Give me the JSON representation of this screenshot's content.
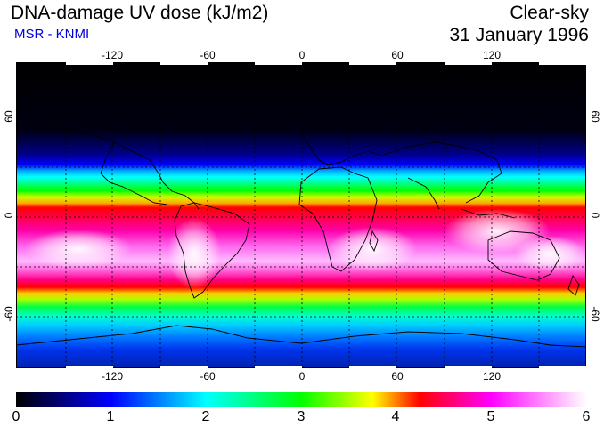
{
  "title": "DNA-damage UV dose (kJ/m2)",
  "subtitle": "MSR - KNMI",
  "condition": "Clear-sky",
  "date": "31 January 1996",
  "lon_ticks": [
    "-120",
    "-60",
    "0",
    "60",
    "120"
  ],
  "lat_ticks_left": [
    "60",
    "0",
    "-60"
  ],
  "lat_ticks_right": [
    "60",
    "0",
    "-60"
  ],
  "colorbar_ticks": [
    "0",
    "1",
    "2",
    "3",
    "4",
    "5",
    "6"
  ],
  "colorbar_colors": [
    "#000000",
    "#0000ff",
    "#00ffff",
    "#00ff00",
    "#ffff00",
    "#ff0000",
    "#ff00ff",
    "#ffffff"
  ],
  "map_colors": {
    "background_dark": "#000000",
    "coast": "#000000",
    "grid": "#000000"
  }
}
